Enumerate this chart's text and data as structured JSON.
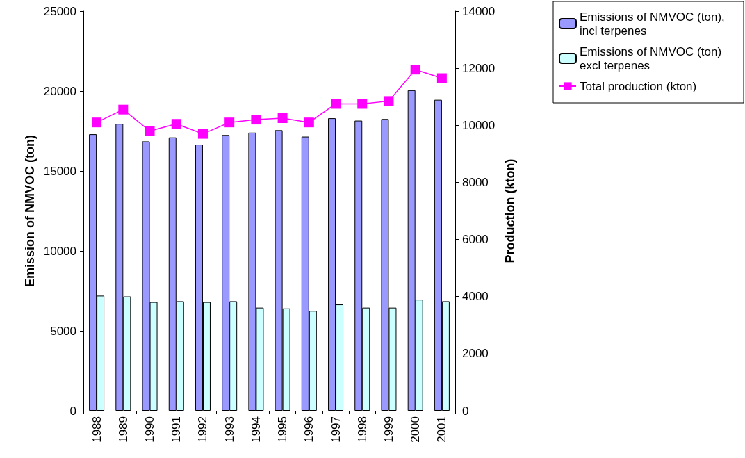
{
  "chart_data": {
    "type": "bar",
    "categories": [
      "1988",
      "1989",
      "1990",
      "1991",
      "1992",
      "1993",
      "1994",
      "1995",
      "1996",
      "1997",
      "1998",
      "1999",
      "2000",
      "2001"
    ],
    "series": [
      {
        "name": "Emissions of NMVOC (ton), incl terpenes",
        "color": "#9999ff",
        "values": [
          17300,
          17950,
          16850,
          17100,
          16650,
          17250,
          17400,
          17550,
          17150,
          18300,
          18150,
          18250,
          20050,
          19450
        ]
      },
      {
        "name": "Emissions of NMVOC (ton) excl terpenes",
        "color": "#ccffff",
        "values": [
          7200,
          7150,
          6800,
          6850,
          6800,
          6850,
          6450,
          6400,
          6250,
          6650,
          6450,
          6450,
          6950,
          6850
        ]
      },
      {
        "name": "Total production (kton)",
        "color": "#ff00ff",
        "type": "line",
        "axis": "y2",
        "values": [
          10100,
          10550,
          9800,
          10050,
          9700,
          10100,
          10200,
          10250,
          10100,
          10750,
          10750,
          10850,
          11950,
          11650
        ]
      }
    ],
    "ylabel": "Emission of NMVOC (ton)",
    "y2label": "Production (kton)",
    "ylim": [
      0,
      25000
    ],
    "yticks": [
      0,
      5000,
      10000,
      15000,
      20000,
      25000
    ],
    "y2lim": [
      0,
      14000
    ],
    "y2ticks": [
      0,
      2000,
      4000,
      6000,
      8000,
      10000,
      12000,
      14000
    ],
    "legend": "top right",
    "marker": "square",
    "grid": false
  }
}
